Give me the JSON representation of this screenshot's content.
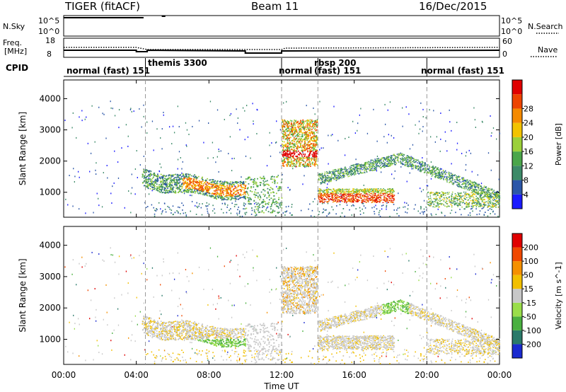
{
  "header": {
    "title": "TIGER (fitACF)",
    "beam": "Beam 11",
    "date": "16/Dec/2015"
  },
  "top_panels": {
    "nsky_label": "N.Sky",
    "nsky_ticks": [
      "10^5",
      "10^0"
    ],
    "freq_label_1": "Freq.",
    "freq_label_2": "[MHz]",
    "freq_ticks": [
      "18",
      "8"
    ],
    "cpid_label": "CPID",
    "nsearch_label": "N.Search",
    "nsearch_ticks": [
      "10^5",
      "10^0"
    ],
    "nave_label": "Nave",
    "nave_ticks": [
      "60",
      "0"
    ]
  },
  "cpid_segments": [
    {
      "label": "normal (fast) 151",
      "start": 0.0
    },
    {
      "label": "themis 3300",
      "start": 4.5
    },
    {
      "label": "normal",
      "start": 12.0
    },
    {
      "label": "rbsp 200",
      "start": 14.0
    },
    {
      "label": "(fast) 151",
      "start": 14.0
    },
    {
      "label": "normal (fast) 151",
      "start": 20.0
    }
  ],
  "chart_data": [
    {
      "type": "heatmap",
      "ylabel": "Slant Range [km]",
      "ylim": [
        200,
        4600
      ],
      "yticks": [
        "1000",
        "2000",
        "3000",
        "4000"
      ],
      "xlim": [
        0,
        24
      ],
      "colorbar": {
        "label": "Power [dB]",
        "ticks": [
          "4",
          "8",
          "12",
          "16",
          "20",
          "24",
          "28"
        ],
        "colors": [
          "#1a1aff",
          "#2b56a8",
          "#3c8a68",
          "#4aa64a",
          "#9bd03a",
          "#f2c300",
          "#f58a00",
          "#ee4400",
          "#e00000"
        ]
      }
    },
    {
      "type": "heatmap",
      "ylabel": "Slant Range [km]",
      "ylim": [
        200,
        4600
      ],
      "yticks": [
        "1000",
        "2000",
        "3000",
        "4000"
      ],
      "xlim": [
        0,
        24
      ],
      "xticks": [
        "00:00",
        "04:00",
        "08:00",
        "12:00",
        "16:00",
        "20:00",
        "00:00"
      ],
      "xlabel": "Time UT",
      "colorbar": {
        "label": "Velocity [m s^-1]",
        "ticks": [
          "200",
          "100",
          "50",
          "15",
          "-15",
          "-50",
          "-100",
          "-200"
        ],
        "colors": [
          "#1a2ad0",
          "#2a7a6a",
          "#4ab040",
          "#9ade4a",
          "#c8c8c8",
          "#f2c000",
          "#f59000",
          "#f04800",
          "#e00000"
        ]
      }
    }
  ]
}
